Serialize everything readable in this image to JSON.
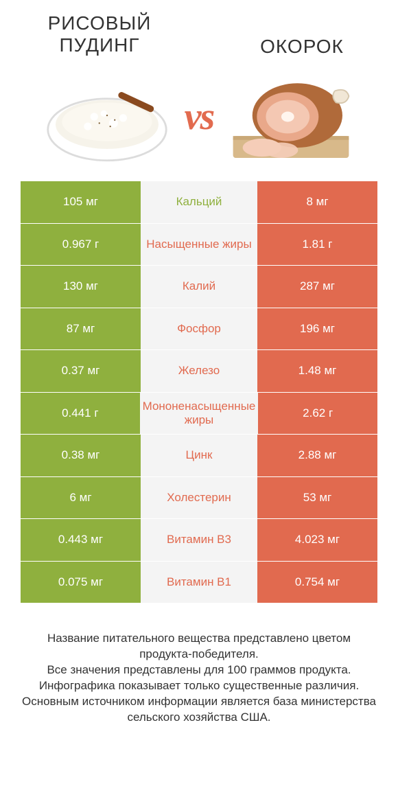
{
  "colors": {
    "left": "#8fb03e",
    "right": "#e16a4f",
    "mid_bg": "#f4f4f4",
    "label_left": "#8fb03e",
    "label_right": "#e16a4f",
    "text": "#333333",
    "white": "#ffffff"
  },
  "header": {
    "left_title": "РИСОВЫЙ ПУДИНГ",
    "right_title": "ОКОРОК",
    "vs": "vs"
  },
  "rows": [
    {
      "left": "105 мг",
      "label": "Кальций",
      "right": "8 мг",
      "winner": "left"
    },
    {
      "left": "0.967 г",
      "label": "Насыщенные жиры",
      "right": "1.81 г",
      "winner": "right"
    },
    {
      "left": "130 мг",
      "label": "Калий",
      "right": "287 мг",
      "winner": "right"
    },
    {
      "left": "87 мг",
      "label": "Фосфор",
      "right": "196 мг",
      "winner": "right"
    },
    {
      "left": "0.37 мг",
      "label": "Железо",
      "right": "1.48 мг",
      "winner": "right"
    },
    {
      "left": "0.441 г",
      "label": "Мононенасыщенные жиры",
      "right": "2.62 г",
      "winner": "right"
    },
    {
      "left": "0.38 мг",
      "label": "Цинк",
      "right": "2.88 мг",
      "winner": "right"
    },
    {
      "left": "6 мг",
      "label": "Холестерин",
      "right": "53 мг",
      "winner": "right"
    },
    {
      "left": "0.443 мг",
      "label": "Витамин B3",
      "right": "4.023 мг",
      "winner": "right"
    },
    {
      "left": "0.075 мг",
      "label": "Витамин B1",
      "right": "0.754 мг",
      "winner": "right"
    }
  ],
  "footer": {
    "line1": "Название питательного вещества представлено цветом продукта-победителя.",
    "line2": "Все значения представлены для 100 граммов продукта.",
    "line3": "Инфографика показывает только существенные различия.",
    "line4": "Основным источником информации является база министерства сельского хозяйства США."
  }
}
